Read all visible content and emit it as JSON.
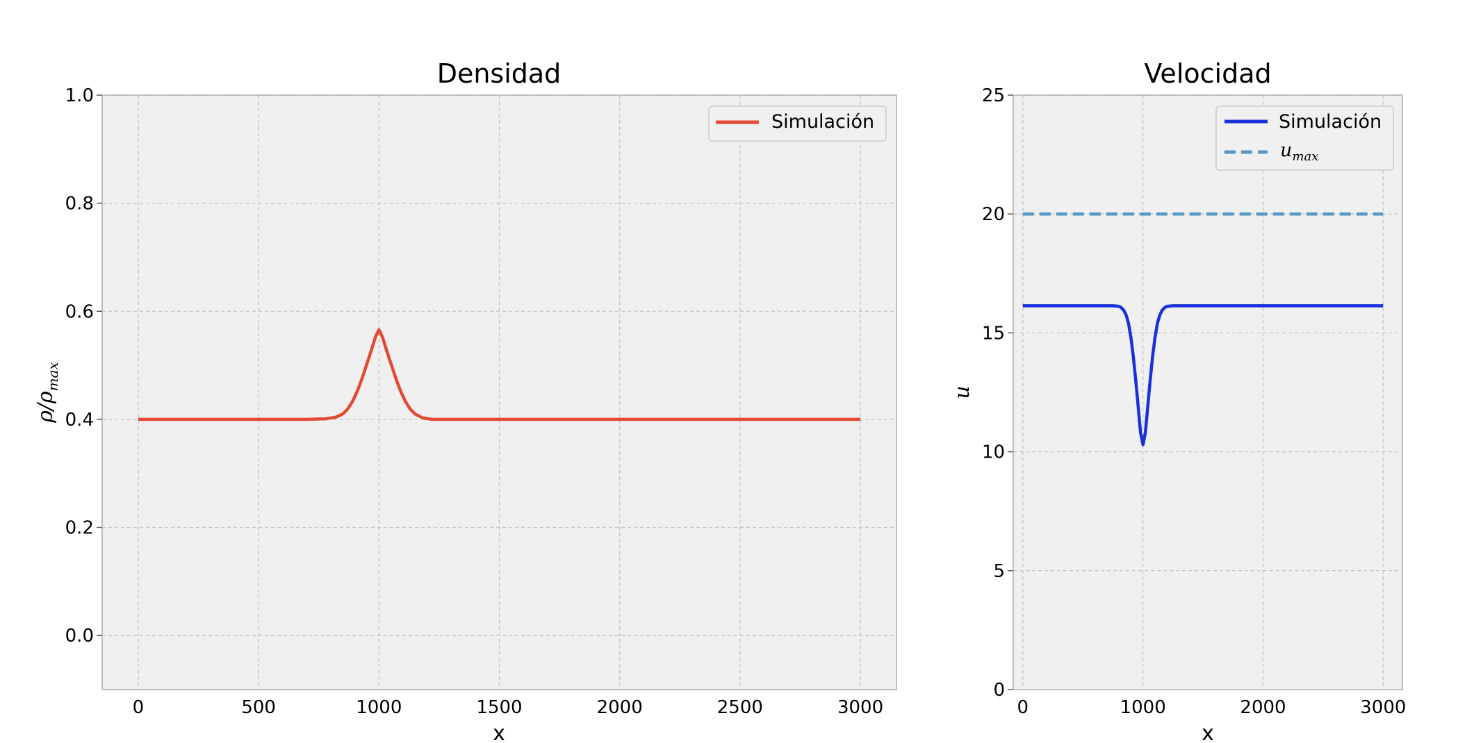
{
  "chart_data": [
    {
      "type": "line",
      "title": "Densidad",
      "xlabel": "x",
      "ylabel": {
        "base": "ρ/ρ",
        "sub": "max"
      },
      "xlim": [
        -150,
        3150
      ],
      "ylim": [
        -0.1,
        1.0
      ],
      "xticks": [
        0,
        500,
        1000,
        1500,
        2000,
        2500,
        3000
      ],
      "xtick_labels": [
        "0",
        "500",
        "1000",
        "1500",
        "2000",
        "2500",
        "3000"
      ],
      "yticks": [
        0.0,
        0.2,
        0.4,
        0.6,
        0.8,
        1.0
      ],
      "ytick_labels": [
        "0.0",
        "0.2",
        "0.4",
        "0.6",
        "0.8",
        "1.0"
      ],
      "grid": true,
      "legend": "top-right",
      "series": [
        {
          "name": "Simulación",
          "color": "#e24a33",
          "style": "solid",
          "x": [
            0,
            700,
            780,
            820,
            850,
            870,
            890,
            910,
            930,
            950,
            970,
            985,
            1000,
            1015,
            1030,
            1050,
            1070,
            1090,
            1110,
            1130,
            1150,
            1180,
            1220,
            1300,
            3000
          ],
          "y": [
            0.4,
            0.4,
            0.401,
            0.404,
            0.41,
            0.419,
            0.433,
            0.452,
            0.476,
            0.503,
            0.53,
            0.552,
            0.566,
            0.552,
            0.53,
            0.503,
            0.476,
            0.452,
            0.433,
            0.419,
            0.41,
            0.403,
            0.4,
            0.4,
            0.4
          ]
        }
      ]
    },
    {
      "type": "line",
      "title": "Velocidad",
      "xlabel": "x",
      "ylabel": {
        "base": "u",
        "sub": ""
      },
      "xlim": [
        -80,
        3160
      ],
      "ylim": [
        0,
        25
      ],
      "xticks": [
        0,
        1000,
        2000,
        3000
      ],
      "xtick_labels": [
        "0",
        "1000",
        "2000",
        "3000"
      ],
      "yticks": [
        0,
        5,
        10,
        15,
        20,
        25
      ],
      "ytick_labels": [
        "0",
        "5",
        "10",
        "15",
        "20",
        "25"
      ],
      "grid": true,
      "legend": "top-right",
      "series": [
        {
          "name": "Simulación",
          "color": "#1a30d8",
          "style": "solid",
          "x": [
            0,
            750,
            800,
            820,
            840,
            860,
            880,
            900,
            920,
            940,
            960,
            980,
            1000,
            1020,
            1040,
            1060,
            1080,
            1100,
            1120,
            1140,
            1160,
            1180,
            1200,
            1250,
            3000
          ],
          "y": [
            16.14,
            16.14,
            16.12,
            16.06,
            15.95,
            15.75,
            15.4,
            14.8,
            14.0,
            13.0,
            11.9,
            10.8,
            10.3,
            10.8,
            11.9,
            13.0,
            14.0,
            14.8,
            15.4,
            15.75,
            15.95,
            16.06,
            16.12,
            16.14,
            16.14
          ]
        },
        {
          "name": {
            "base": "u",
            "sub": "max"
          },
          "color": "#5597c5",
          "style": "dashed",
          "x": [
            0,
            3000
          ],
          "y": [
            20,
            20
          ]
        }
      ]
    }
  ]
}
